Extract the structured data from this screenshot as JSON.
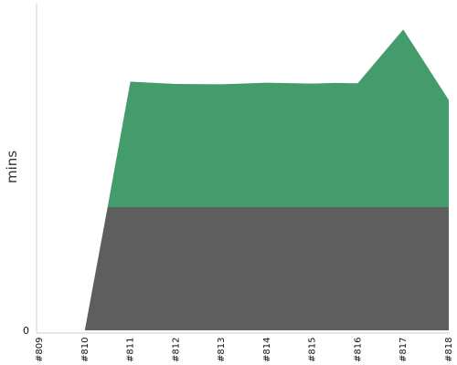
{
  "chart_data": {
    "type": "area",
    "stacked": true,
    "ylabel": "mins",
    "y_tick_labels": [
      "0"
    ],
    "ylim": [
      0,
      100
    ],
    "categories": [
      "#809",
      "#810",
      "#811",
      "#812",
      "#813",
      "#814",
      "#815",
      "#816",
      "#817",
      "#818"
    ],
    "x": [
      0,
      1,
      1.5,
      2,
      3,
      4,
      5,
      6,
      6.5,
      7,
      8,
      9
    ],
    "series": [
      {
        "values": [
          0,
          0,
          37.5,
          37.5,
          37.5,
          37.5,
          37.5,
          37.5,
          37.5,
          37.5,
          37.5,
          37.5
        ],
        "color": "#5e5e5e"
      },
      {
        "values": [
          0,
          0,
          0,
          38.2,
          37.5,
          37.4,
          37.9,
          37.6,
          37.8,
          37.7,
          54.1,
          32.6
        ],
        "color": "#449c6c"
      }
    ],
    "grid": false,
    "legend": "none"
  }
}
